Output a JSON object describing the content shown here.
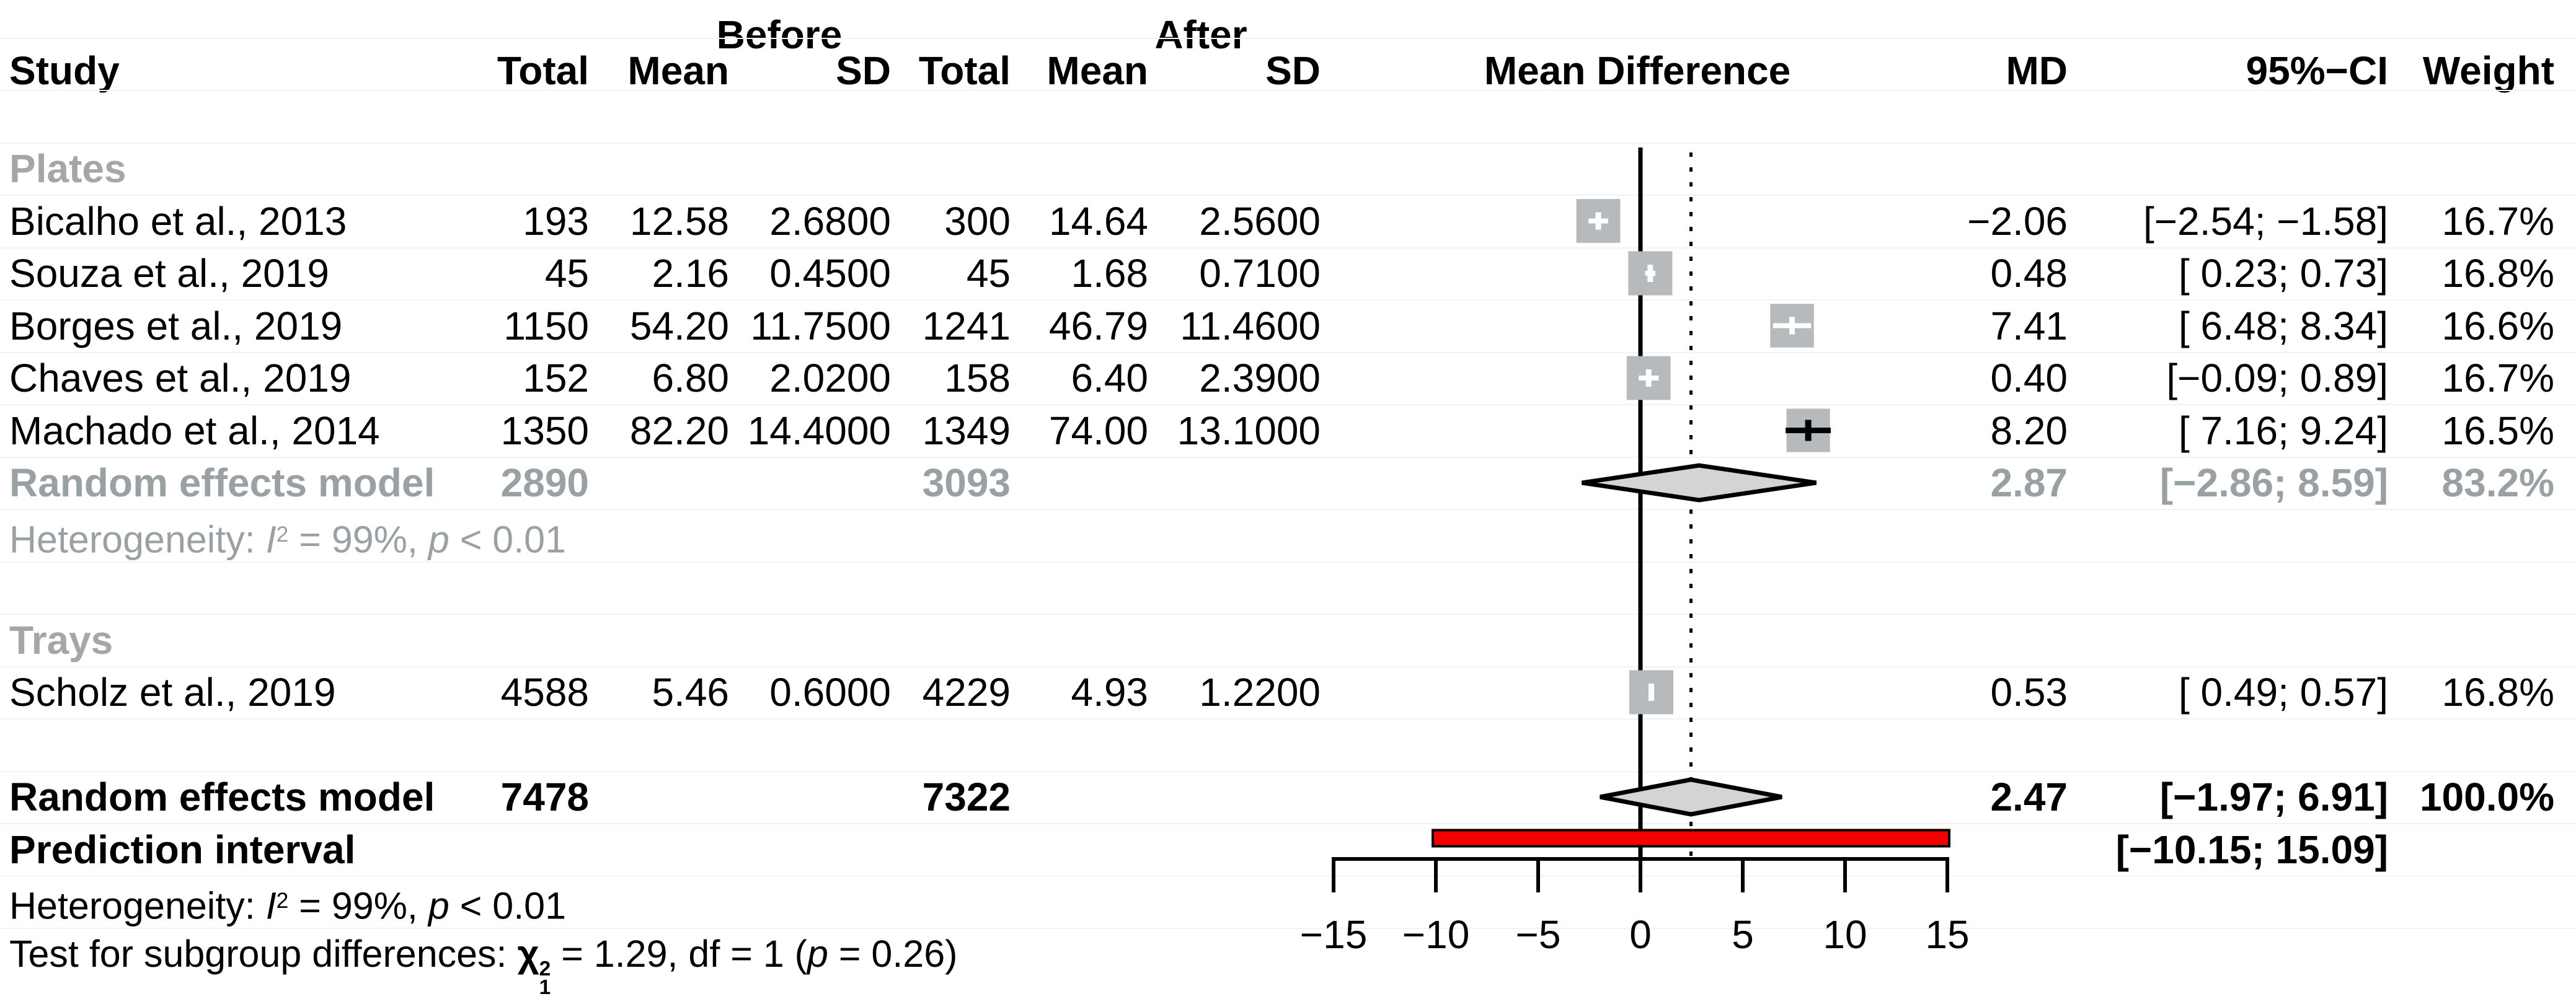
{
  "colors": {
    "red_bar": "#f40000",
    "square_fill": "#b7babc",
    "diamond_fill": "#d4d4d4",
    "gray_text": "#9aa1a4",
    "group_label_text": "#a6a6a6",
    "axis_color": "#000000"
  },
  "chart_data": {
    "type": "forest",
    "columns": {
      "study": "Study",
      "total": "Total",
      "mean": "Mean",
      "sd": "SD",
      "before": "Before",
      "after": "After",
      "mean_difference": "Mean Difference",
      "md": "MD",
      "ci": "95%−CI",
      "weight": "Weight"
    },
    "axis": {
      "ticks": [
        -15,
        -10,
        -5,
        0,
        5,
        10,
        15
      ],
      "tick_labels": [
        "−15",
        "−10",
        "−5",
        "0",
        "5",
        "10",
        "15"
      ],
      "xlim": [
        -15,
        15
      ]
    },
    "zero_line": 0,
    "overall_effect_line": 2.47,
    "groups": [
      {
        "label": "Plates",
        "studies": [
          {
            "name": "Bicalho et al., 2013",
            "total_before": "193",
            "mean_before": "12.58",
            "sd_before": "2.6800",
            "total_after": "300",
            "mean_after": "14.64",
            "sd_after": "2.5600",
            "md": -2.06,
            "ci_lo": -2.54,
            "ci_hi": -1.58,
            "md_text": "−2.06",
            "ci_text": "[−2.54; −1.58]",
            "weight": 16.7,
            "weight_text": "16.7%",
            "ci_marker": "white"
          },
          {
            "name": "Souza et al., 2019",
            "total_before": "45",
            "mean_before": "2.16",
            "sd_before": "0.4500",
            "total_after": "45",
            "mean_after": "1.68",
            "sd_after": "0.7100",
            "md": 0.48,
            "ci_lo": 0.23,
            "ci_hi": 0.73,
            "md_text": "0.48",
            "ci_text": "[ 0.23; 0.73]",
            "weight": 16.8,
            "weight_text": "16.8%",
            "ci_marker": "white"
          },
          {
            "name": "Borges et al., 2019",
            "total_before": "1150",
            "mean_before": "54.20",
            "sd_before": "11.7500",
            "total_after": "1241",
            "mean_after": "46.79",
            "sd_after": "11.4600",
            "md": 7.41,
            "ci_lo": 6.48,
            "ci_hi": 8.34,
            "md_text": "7.41",
            "ci_text": "[ 6.48; 8.34]",
            "weight": 16.6,
            "weight_text": "16.6%",
            "ci_marker": "white"
          },
          {
            "name": "Chaves et al., 2019",
            "total_before": "152",
            "mean_before": "6.80",
            "sd_before": "2.0200",
            "total_after": "158",
            "mean_after": "6.40",
            "sd_after": "2.3900",
            "md": 0.4,
            "ci_lo": -0.09,
            "ci_hi": 0.89,
            "md_text": "0.40",
            "ci_text": "[−0.09; 0.89]",
            "weight": 16.7,
            "weight_text": "16.7%",
            "ci_marker": "white"
          },
          {
            "name": "Machado et al., 2014",
            "total_before": "1350",
            "mean_before": "82.20",
            "sd_before": "14.4000",
            "total_after": "1349",
            "mean_after": "74.00",
            "sd_after": "13.1000",
            "md": 8.2,
            "ci_lo": 7.16,
            "ci_hi": 9.24,
            "md_text": "8.20",
            "ci_text": "[ 7.16; 9.24]",
            "weight": 16.5,
            "weight_text": "16.5%",
            "ci_marker": "black"
          }
        ],
        "subtotal": {
          "label": "Random effects model",
          "total_before": "2890",
          "total_after": "3093",
          "md": 2.87,
          "ci_lo": -2.86,
          "ci_hi": 8.59,
          "md_text": "2.87",
          "ci_text": "[−2.86; 8.59]",
          "weight_text": "83.2%"
        },
        "heterogeneity": [
          {
            "t": "Heterogeneity: "
          },
          {
            "t": "I",
            "i": true
          },
          {
            "t": "2",
            "sup": true
          },
          {
            "t": " = 99%, "
          },
          {
            "t": "p",
            "i": true
          },
          {
            "t": " < 0.01"
          }
        ]
      },
      {
        "label": "Trays",
        "studies": [
          {
            "name": "Scholz et al., 2019",
            "total_before": "4588",
            "mean_before": "5.46",
            "sd_before": "0.6000",
            "total_after": "4229",
            "mean_after": "4.93",
            "sd_after": "1.2200",
            "md": 0.53,
            "ci_lo": 0.49,
            "ci_hi": 0.57,
            "md_text": "0.53",
            "ci_text": "[ 0.49; 0.57]",
            "weight": 16.8,
            "weight_text": "16.8%",
            "ci_marker": "white"
          }
        ]
      }
    ],
    "overall": {
      "label": "Random effects model",
      "total_before": "7478",
      "total_after": "7322",
      "md": 2.47,
      "ci_lo": -1.97,
      "ci_hi": 6.91,
      "md_text": "2.47",
      "ci_text": "[−1.97; 6.91]",
      "weight_text": "100.0%"
    },
    "prediction": {
      "label": "Prediction interval",
      "ci_lo": -10.15,
      "ci_hi": 15.09,
      "ci_text": "[−10.15; 15.09]"
    },
    "footnotes": {
      "heterogeneity_overall": [
        {
          "t": "Heterogeneity: "
        },
        {
          "t": "I",
          "i": true
        },
        {
          "t": "2",
          "sup": true
        },
        {
          "t": " = 99%, "
        },
        {
          "t": "p",
          "i": true
        },
        {
          "t": " < 0.01"
        }
      ],
      "subgroup_test": [
        {
          "t": "Test for subgroup differences: "
        },
        {
          "t": "χ",
          "b": true
        },
        {
          "stack": [
            "2",
            "1"
          ],
          "b": true
        },
        {
          "t": " = 1.29, df = 1 ("
        },
        {
          "t": "p",
          "i": true
        },
        {
          "t": " = 0.26)"
        }
      ]
    }
  }
}
